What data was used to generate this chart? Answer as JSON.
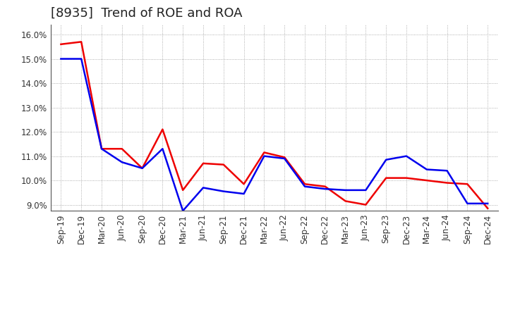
{
  "title": "[8935]  Trend of ROE and ROA",
  "x_labels": [
    "Sep-19",
    "Dec-19",
    "Mar-20",
    "Jun-20",
    "Sep-20",
    "Dec-20",
    "Mar-21",
    "Jun-21",
    "Sep-21",
    "Dec-21",
    "Mar-22",
    "Jun-22",
    "Sep-22",
    "Dec-22",
    "Mar-23",
    "Jun-23",
    "Sep-23",
    "Dec-23",
    "Mar-24",
    "Jun-24",
    "Sep-24",
    "Dec-24"
  ],
  "ROE": [
    15.6,
    15.7,
    11.3,
    11.3,
    10.5,
    12.1,
    9.6,
    10.7,
    10.65,
    9.85,
    11.15,
    10.95,
    9.85,
    9.75,
    9.15,
    9.0,
    10.1,
    10.1,
    10.0,
    9.9,
    9.85,
    8.85
  ],
  "ROA": [
    15.0,
    15.0,
    11.3,
    10.75,
    10.5,
    11.3,
    8.75,
    9.7,
    9.55,
    9.45,
    11.0,
    10.9,
    9.75,
    9.65,
    9.6,
    9.6,
    10.85,
    11.0,
    10.45,
    10.4,
    9.05,
    9.05
  ],
  "ROE_color": "#ee0000",
  "ROA_color": "#0000ee",
  "background_color": "#ffffff",
  "plot_bg_color": "#ffffff",
  "grid_color": "#999999",
  "ylim": [
    8.75,
    16.4
  ],
  "yticks": [
    9.0,
    10.0,
    11.0,
    12.0,
    13.0,
    14.0,
    15.0,
    16.0
  ],
  "title_fontsize": 13,
  "legend_fontsize": 10,
  "tick_fontsize": 8.5,
  "line_width": 1.8
}
